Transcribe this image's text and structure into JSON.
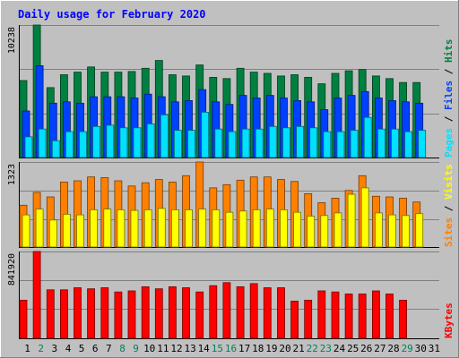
{
  "chart_data": {
    "type": "bar",
    "title": "Daily usage for February 2020",
    "x": [
      "1",
      "2",
      "3",
      "4",
      "5",
      "6",
      "7",
      "8",
      "9",
      "10",
      "11",
      "12",
      "13",
      "14",
      "15",
      "16",
      "17",
      "18",
      "19",
      "20",
      "21",
      "22",
      "23",
      "24",
      "25",
      "26",
      "27",
      "28",
      "29",
      "30",
      "31"
    ],
    "weekend_days": [
      "2",
      "8",
      "9",
      "15",
      "16",
      "22",
      "23",
      "29"
    ],
    "panels": [
      {
        "ylabel_max": "10238",
        "ymax": 10238,
        "legend": [
          "Pages",
          "Files",
          "Hits"
        ],
        "legend_colors": [
          "#00e0ff",
          "#0040ff",
          "#008040"
        ],
        "series": [
          {
            "name": "Hits",
            "color": "#008040",
            "values": [
              5950,
              10238,
              5400,
              6400,
              6600,
              7000,
              6600,
              6600,
              6650,
              6900,
              7500,
              6400,
              6300,
              7150,
              6200,
              6100,
              6900,
              6600,
              6500,
              6300,
              6400,
              6200,
              5700,
              6500,
              6700,
              6800,
              6300,
              6100,
              5800,
              5800,
              null
            ]
          },
          {
            "name": "Files",
            "color": "#0040ff",
            "values": [
              3600,
              7100,
              4200,
              4300,
              4200,
              4700,
              4700,
              4700,
              4600,
              4900,
              4700,
              4300,
              4400,
              5250,
              4300,
              4100,
              4800,
              4600,
              4800,
              4600,
              4400,
              4300,
              3700,
              4600,
              4800,
              5100,
              4600,
              4400,
              4300,
              4200,
              null
            ]
          },
          {
            "name": "Pages",
            "color": "#00e0ff",
            "values": [
              1600,
              2200,
              1300,
              2000,
              2000,
              2400,
              2500,
              2300,
              2300,
              2600,
              3300,
              2100,
              2100,
              3500,
              2200,
              2000,
              2200,
              2200,
              2400,
              2300,
              2400,
              2300,
              2000,
              2000,
              2100,
              3100,
              2200,
              2200,
              2000,
              2100,
              null
            ]
          }
        ]
      },
      {
        "ylabel_max": "1323",
        "ymax": 1323,
        "legend": [
          "Sites",
          "Visits"
        ],
        "legend_colors": [
          "#ff8000",
          "#ffff00"
        ],
        "series": [
          {
            "name": "Visits",
            "color": "#ff8000",
            "values": [
              650,
              850,
              780,
              1010,
              1030,
              1090,
              1080,
              1030,
              950,
              1000,
              1050,
              1010,
              1110,
              1323,
              920,
              970,
              1040,
              1090,
              1090,
              1050,
              1020,
              830,
              690,
              760,
              880,
              1110,
              790,
              780,
              760,
              700,
              null
            ]
          },
          {
            "name": "Sites",
            "color": "#ffff00",
            "values": [
              500,
              590,
              420,
              510,
              500,
              580,
              590,
              580,
              570,
              580,
              600,
              580,
              580,
              590,
              580,
              540,
              560,
              580,
              590,
              580,
              540,
              480,
              490,
              530,
              820,
              920,
              530,
              500,
              490,
              520,
              null
            ]
          }
        ]
      },
      {
        "ylabel_max": "841920",
        "ymax": 841920,
        "legend": [
          "KBytes"
        ],
        "legend_colors": [
          "#ff0000"
        ],
        "series": [
          {
            "name": "KBytes",
            "color": "#ff0000",
            "values": [
              370000,
              841920,
              470000,
              470000,
              490000,
              480000,
              490000,
              450000,
              460000,
              500000,
              480000,
              500000,
              490000,
              450000,
              510000,
              540000,
              500000,
              530000,
              490000,
              490000,
              360000,
              370000,
              460000,
              450000,
              430000,
              430000,
              460000,
              430000,
              370000,
              null,
              null
            ]
          }
        ]
      }
    ]
  }
}
